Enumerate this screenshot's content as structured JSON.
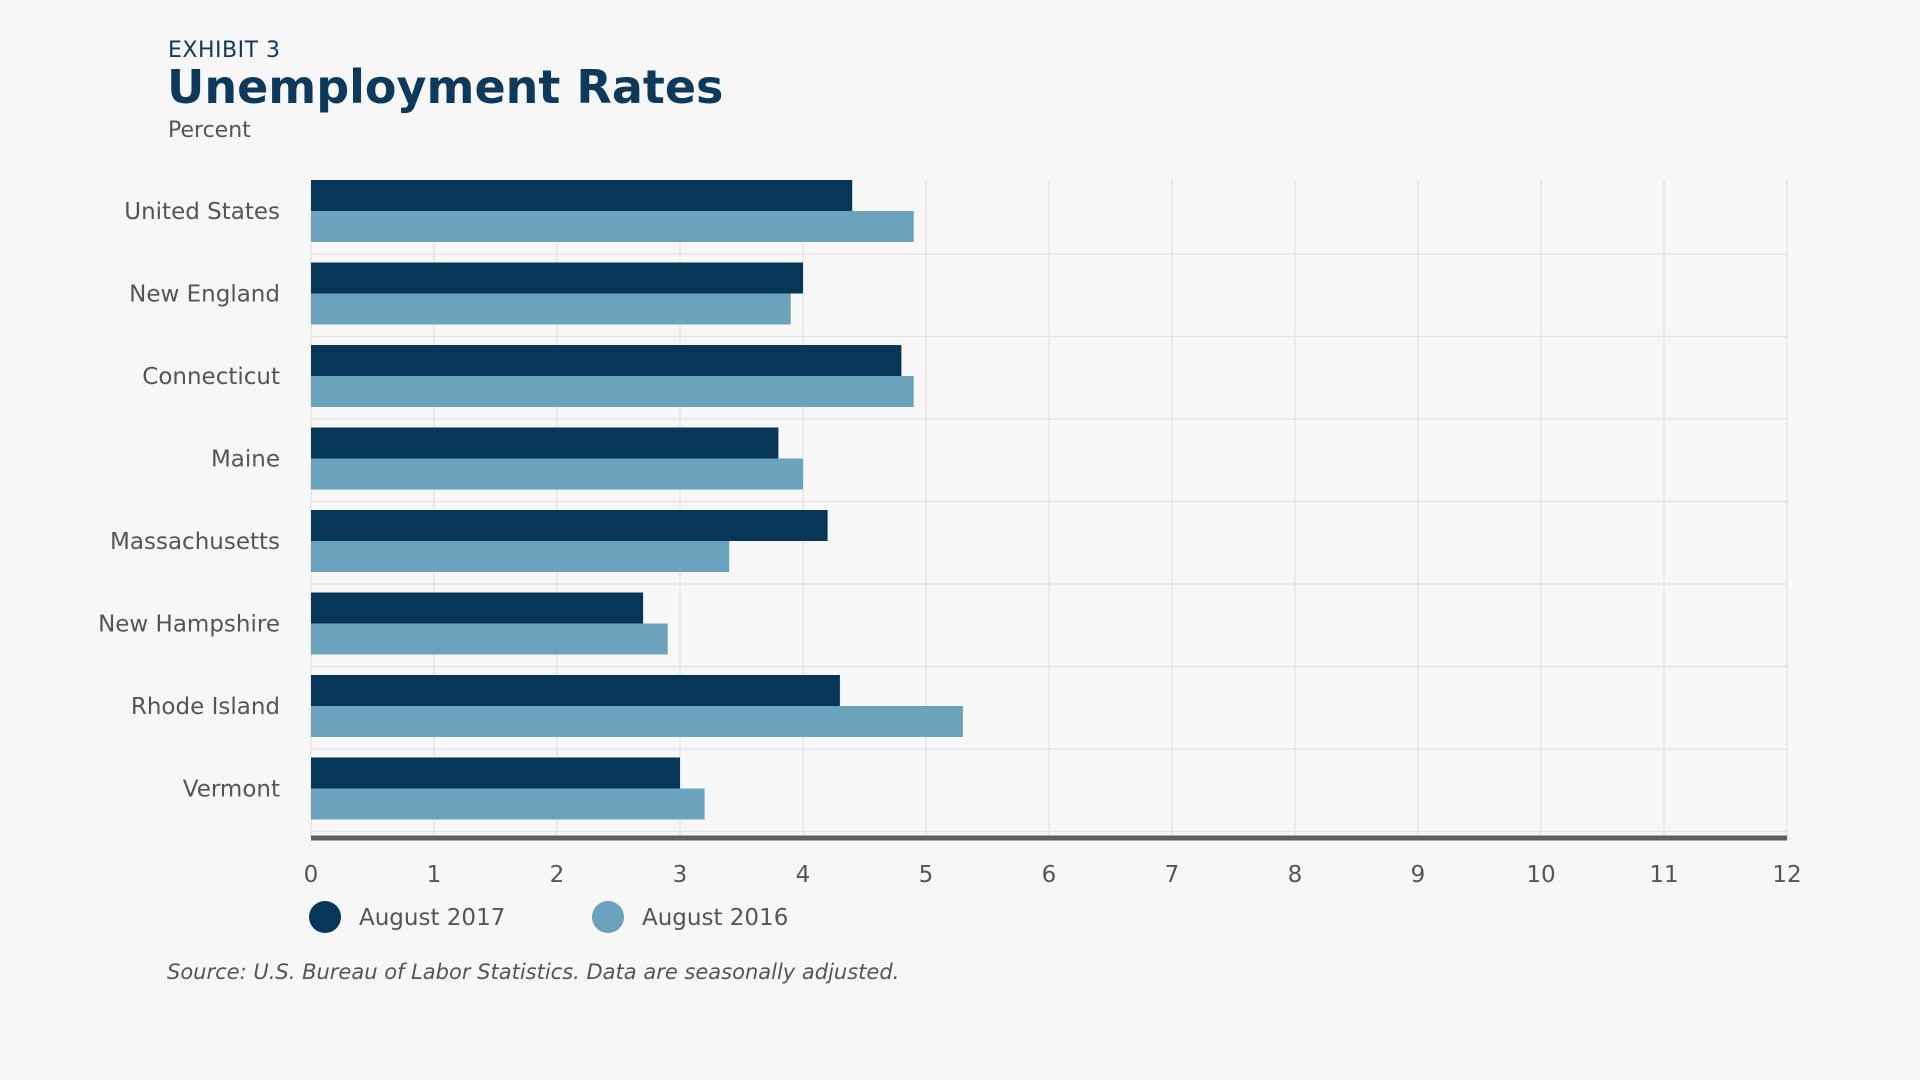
{
  "header": {
    "exhibit": "EXHIBIT 3",
    "title": "Unemployment Rates",
    "subtitle": "Percent"
  },
  "footer": {
    "source": "Source: U.S. Bureau of Labor Statistics. Data are seasonally adjusted."
  },
  "colors": {
    "series_2017": "#063758",
    "series_2016": "#6aa3bb",
    "grid": "#e2e2e2",
    "axis": "#5e5e5e",
    "label": "#555555"
  },
  "chart_data": {
    "type": "bar",
    "orientation": "horizontal",
    "title": "Unemployment Rates",
    "xlabel": "",
    "ylabel": "Percent",
    "xlim": [
      0,
      12
    ],
    "xticks": [
      0,
      1,
      2,
      3,
      4,
      5,
      6,
      7,
      8,
      9,
      10,
      11,
      12
    ],
    "grid": true,
    "legend_position": "bottom-left",
    "categories": [
      "United States",
      "New England",
      "Connecticut",
      "Maine",
      "Massachusetts",
      "New Hampshire",
      "Rhode Island",
      "Vermont"
    ],
    "series": [
      {
        "name": "August 2017",
        "color": "#063758",
        "values": [
          4.4,
          4.0,
          4.8,
          3.8,
          4.2,
          2.7,
          4.3,
          3.0
        ]
      },
      {
        "name": "August 2016",
        "color": "#6aa3bb",
        "values": [
          4.9,
          3.9,
          4.9,
          4.0,
          3.4,
          2.9,
          5.3,
          3.2
        ]
      }
    ]
  }
}
